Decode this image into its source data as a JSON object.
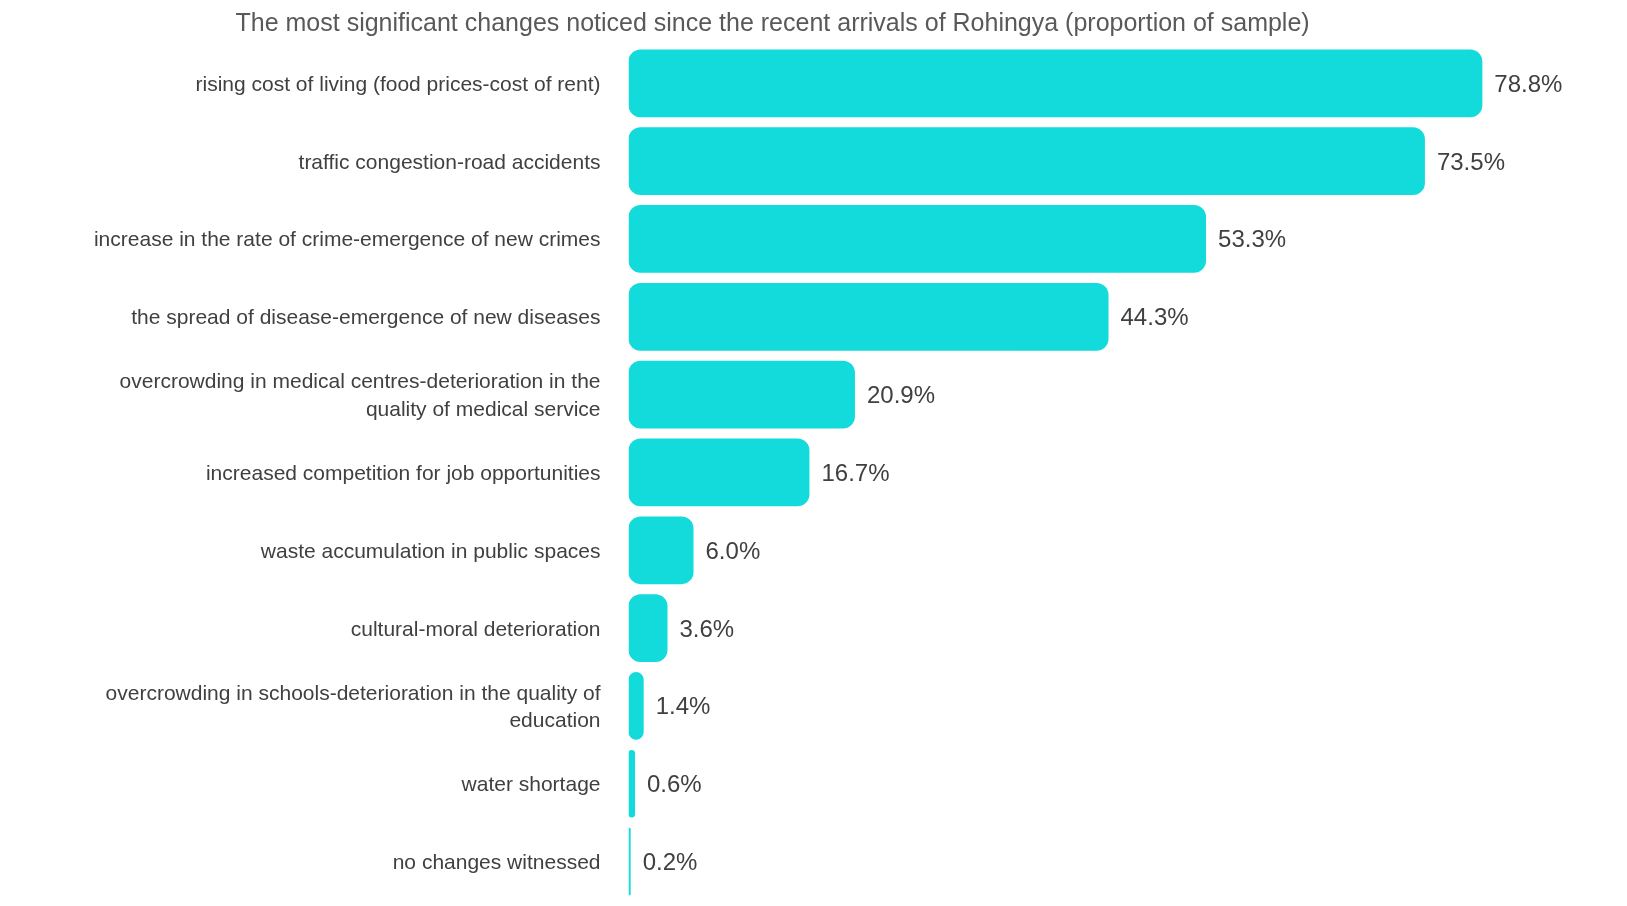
{
  "chart_data": {
    "type": "bar",
    "orientation": "horizontal",
    "title": "The most significant changes noticed since the recent arrivals of Rohingya (proportion of sample)",
    "categories": [
      "rising cost of living (food prices-cost of rent)",
      "traffic congestion-road accidents",
      "increase in the rate of crime-emergence of new crimes",
      "the spread of disease-emergence of new diseases",
      "overcrowding in medical centres-deterioration in the quality of medical service",
      "increased competition for job opportunities",
      "waste accumulation in public spaces",
      "cultural-moral deterioration",
      "overcrowding in schools-deterioration in the quality of education",
      "water shortage",
      "no changes witnessed"
    ],
    "values": [
      78.8,
      73.5,
      53.3,
      44.3,
      20.9,
      16.7,
      6.0,
      3.6,
      1.4,
      0.6,
      0.2
    ],
    "value_labels": [
      "78.8%",
      "73.5%",
      "53.3%",
      "44.3%",
      "20.9%",
      "16.7%",
      "6.0%",
      "3.6%",
      "1.4%",
      "0.6%",
      "0.2%"
    ],
    "color": "#13dadb",
    "tick_labels": "y"
  }
}
